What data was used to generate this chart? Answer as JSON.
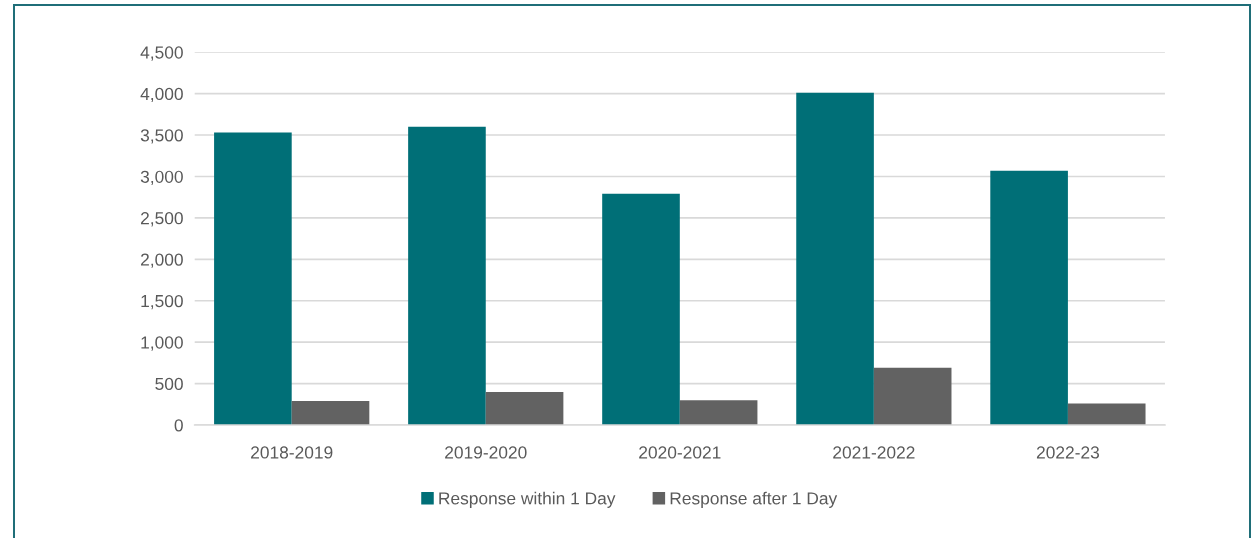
{
  "chart_data": {
    "type": "bar",
    "categories": [
      "2018-2019",
      "2019-2020",
      "2020-2021",
      "2021-2022",
      "2022-23"
    ],
    "series": [
      {
        "name": "Response within 1 Day",
        "color": "#006f77",
        "values": [
          3530,
          3600,
          2790,
          4010,
          3070
        ]
      },
      {
        "name": "Response after 1 Day",
        "color": "#626262",
        "values": [
          290,
          400,
          300,
          690,
          260
        ]
      }
    ],
    "ylim": [
      0,
      4500
    ],
    "yticks": [
      0,
      500,
      {
        "value": 1000,
        "label": "1,000"
      },
      {
        "value": 1500,
        "label": "1,500"
      },
      {
        "value": 2000,
        "label": "2,000"
      },
      {
        "value": 2500,
        "label": "2,500"
      },
      {
        "value": 3000,
        "label": "3,000"
      },
      {
        "value": 3500,
        "label": "3,500"
      },
      {
        "value": 4000,
        "label": "4,000"
      },
      {
        "value": 4500,
        "label": "4,500"
      }
    ],
    "grid": "y",
    "legend": "bottom"
  }
}
